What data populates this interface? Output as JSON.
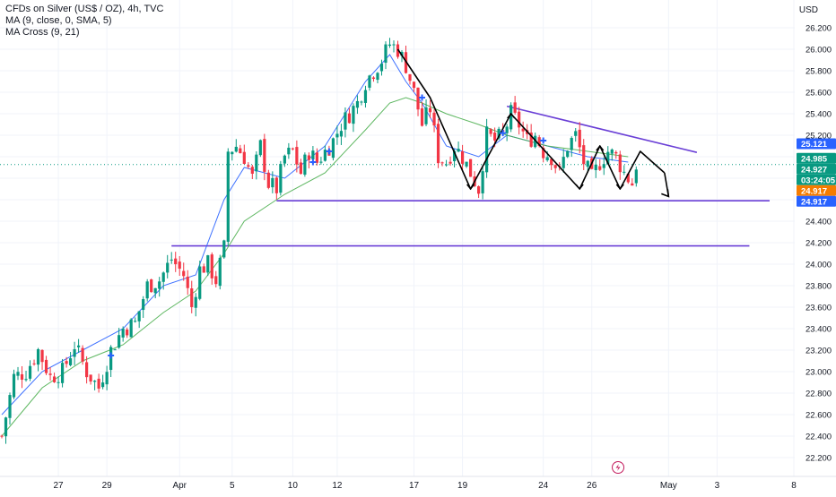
{
  "legend": {
    "title": "CFDs on Silver (US$ / OZ), 4h, TVC",
    "ma": "MA (9, close, 0, SMA, 5)",
    "ma_cross": "MA Cross (9, 21)"
  },
  "currency": "USD",
  "colors": {
    "up": "#089981",
    "down": "#f23645",
    "ma_fast": "#2962ff",
    "ma_slow": "#4caf50",
    "drawing": "#6a3fd6",
    "arrow": "#000000",
    "badge_red": "#f23645",
    "badge_green": "#089981",
    "badge_orange": "#f57c00",
    "badge_blue": "#2962ff"
  },
  "chart_data": {
    "type": "candlestick",
    "title": "CFDs on Silver (US$ / OZ), 4h, TVC",
    "y_range": [
      22.1,
      26.35
    ],
    "y_ticks": [
      "22.200",
      "22.400",
      "22.600",
      "22.800",
      "23.000",
      "23.200",
      "23.400",
      "23.600",
      "23.800",
      "24.000",
      "24.200",
      "24.400",
      "24.600",
      "24.800",
      "25.000",
      "25.200",
      "25.400",
      "25.600",
      "25.800",
      "26.000",
      "26.200"
    ],
    "x_range": [
      0,
      196
    ],
    "x_ticks": [
      {
        "label": "27",
        "x": 14
      },
      {
        "label": "29",
        "x": 26
      },
      {
        "label": "Apr",
        "x": 44
      },
      {
        "label": "5",
        "x": 57
      },
      {
        "label": "10",
        "x": 72
      },
      {
        "label": "12",
        "x": 83
      },
      {
        "label": "17",
        "x": 102
      },
      {
        "label": "19",
        "x": 114
      },
      {
        "label": "24",
        "x": 134
      },
      {
        "label": "26",
        "x": 146
      },
      {
        "label": "May",
        "x": 165
      },
      {
        "label": "3",
        "x": 177
      },
      {
        "label": "8",
        "x": 196
      }
    ],
    "price_badges": [
      {
        "value": "25.121",
        "price": 25.121,
        "color": "blue"
      },
      {
        "value": "24.985",
        "price": 24.985,
        "color": "green"
      },
      {
        "value": "24.927",
        "price": 24.927,
        "color": "green"
      },
      {
        "value": "03:24:05",
        "price": 24.86,
        "color": "green"
      },
      {
        "value": "24.917",
        "price": 24.79,
        "color": "orange"
      },
      {
        "value": "24.917",
        "price": 24.69,
        "color": "blue"
      }
    ],
    "series": [
      {
        "name": "MA (9, close, 0, SMA, 5)",
        "type": "line",
        "x": [
          0,
          10,
          20,
          30,
          40,
          48,
          55,
          60,
          70,
          80,
          90,
          96,
          100,
          104,
          110,
          118,
          125,
          135,
          145,
          155
        ],
        "y": [
          22.6,
          23.0,
          23.2,
          23.4,
          23.8,
          23.9,
          24.6,
          24.9,
          24.8,
          25.1,
          25.7,
          25.95,
          25.7,
          25.5,
          25.1,
          25.0,
          25.2,
          25.1,
          25.0,
          24.95
        ]
      },
      {
        "name": "MA Cross (9, 21)",
        "type": "line",
        "x": [
          0,
          10,
          20,
          30,
          40,
          48,
          55,
          60,
          70,
          80,
          90,
          96,
          100,
          104,
          110,
          118,
          125,
          135,
          145,
          155
        ],
        "y": [
          22.4,
          22.85,
          23.1,
          23.25,
          23.55,
          23.75,
          24.1,
          24.4,
          24.65,
          24.85,
          25.25,
          25.5,
          25.55,
          25.5,
          25.4,
          25.3,
          25.2,
          25.1,
          25.05,
          25.0
        ]
      }
    ],
    "levels": [
      {
        "type": "horizontal",
        "x_start": 68,
        "x_end": 190,
        "price": 24.59
      },
      {
        "type": "horizontal",
        "x_start": 42,
        "x_end": 185,
        "price": 24.17
      },
      {
        "type": "trendline",
        "x_start": 125,
        "y_start": 25.47,
        "x_end": 172,
        "y_end": 25.04
      }
    ],
    "zigzag": {
      "x": [
        98,
        106,
        116,
        126,
        143,
        148,
        153,
        158,
        164
      ],
      "y": [
        26.0,
        25.55,
        24.7,
        25.4,
        24.7,
        25.1,
        24.7,
        25.05,
        24.85
      ]
    },
    "arrow_end": {
      "x": 165,
      "price": 24.63
    }
  }
}
